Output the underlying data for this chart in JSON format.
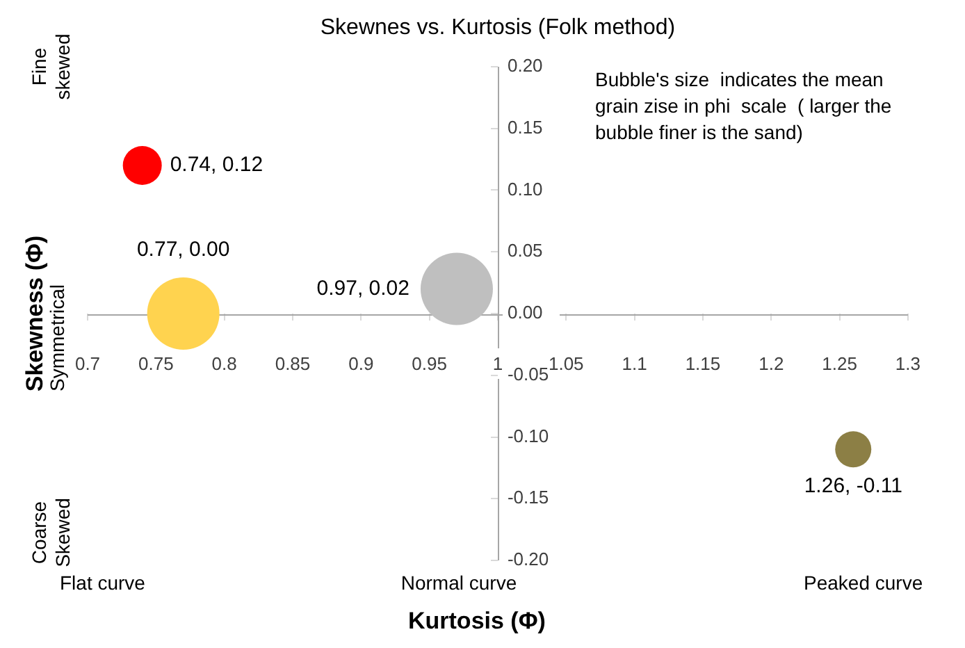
{
  "chart_data": {
    "type": "bubble",
    "title": "Skewnes vs. Kurtosis (Folk method)",
    "xlabel": "Kurtosis (Φ)",
    "ylabel": "Skewness (Φ)",
    "x": [
      0.74,
      0.77,
      0.97,
      1.26
    ],
    "values": [
      0.12,
      0.0,
      0.02,
      -0.11
    ],
    "sizes": [
      0.29,
      1,
      1,
      0.25
    ],
    "colors": [
      "#ff0000",
      "#ffd34f",
      "#bfbfbf",
      "#8c7f45"
    ],
    "value_labels": [
      "0.74, 0.12",
      "0.77, 0.00",
      "0.97, 0.02",
      "1.26, -0.11"
    ],
    "xlim": [
      0.7,
      1.3
    ],
    "xticks": [
      0.7,
      0.75,
      0.8,
      0.85,
      0.9,
      0.95,
      1,
      1.05,
      1.1,
      1.15,
      1.2,
      1.25,
      1.3
    ],
    "ylim": [
      -0.2,
      0.2
    ],
    "yticks": [
      {
        "value": -0.2,
        "label": "-0.20"
      },
      {
        "value": -0.15,
        "label": "-0.15"
      },
      {
        "value": -0.1,
        "label": "-0.10"
      },
      {
        "value": -0.05,
        "label": "-0.05"
      },
      {
        "value": 0,
        "label": "0.00"
      },
      {
        "value": 0.05,
        "label": "0.05"
      },
      {
        "value": 0.1,
        "label": "0.10"
      },
      {
        "value": 0.15,
        "label": "0.15"
      },
      {
        "value": 0.2,
        "label": "0.20"
      }
    ],
    "annotations": [
      "Fine skewed",
      "Symmetrical",
      "Coarse Skewed",
      "Flat curve",
      "Normal curve",
      "Peaked curve",
      "Bubble's size  indicates the mean grain zise in phi  scale  ( larger the bubble finer is the sand)"
    ]
  }
}
